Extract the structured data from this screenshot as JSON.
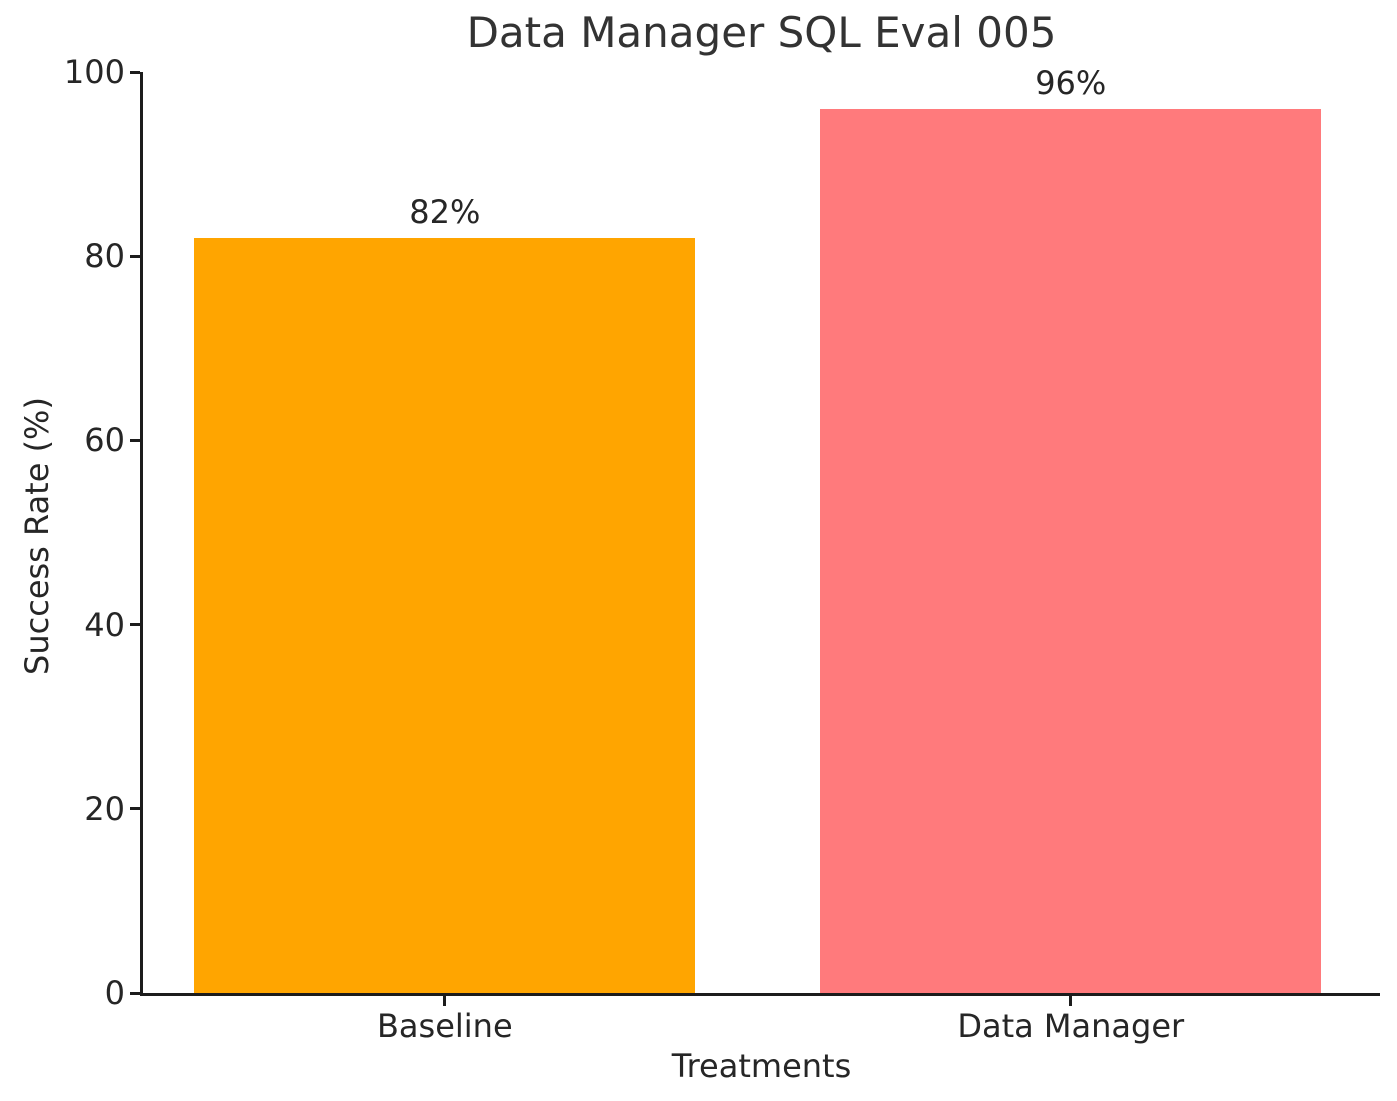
{
  "chart_data": {
    "type": "bar",
    "title": "Data Manager SQL Eval 005",
    "xlabel": "Treatments",
    "ylabel": "Success Rate (%)",
    "categories": [
      "Baseline",
      "Data Manager"
    ],
    "values": [
      82,
      96
    ],
    "value_labels": [
      "82%",
      "96%"
    ],
    "bar_colors": [
      "#FFA500",
      "#FF7A7C"
    ],
    "ylim": [
      0,
      100
    ],
    "yticks": [
      0,
      20,
      40,
      60,
      80,
      100
    ],
    "grid": false,
    "layout": {
      "bar_centers_pct": [
        24.4,
        75.0
      ],
      "bar_width_pct": 40.5,
      "spine_color": "#1c1c1c",
      "text_color": "#262626",
      "title_color": "#333333",
      "background": "#ffffff"
    }
  }
}
